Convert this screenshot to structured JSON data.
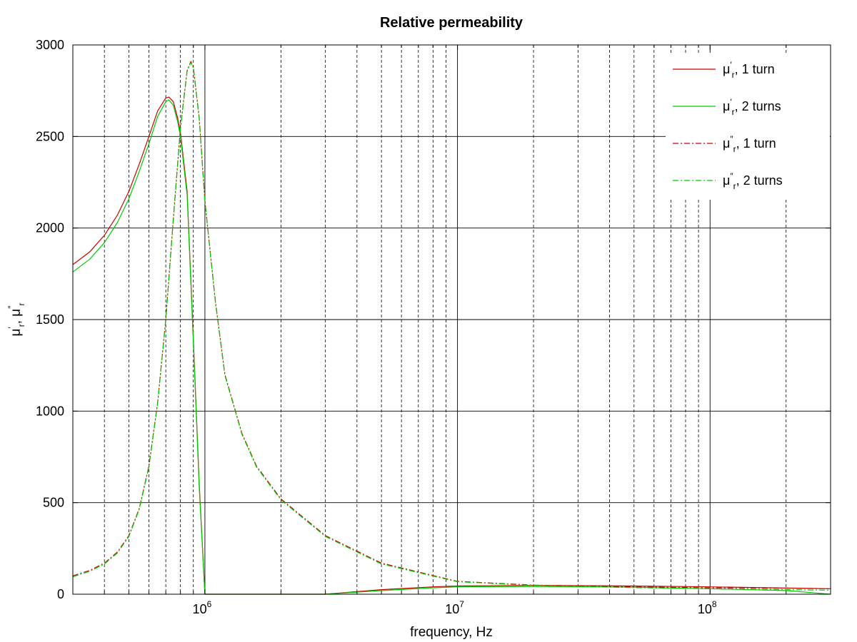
{
  "chart_data": {
    "type": "line",
    "title": "Relative permeability",
    "xlabel": "frequency, Hz",
    "ylabel": "μ′r, μ″r",
    "x_scale": "log",
    "xlim": [
      300000,
      300000000
    ],
    "ylim": [
      0,
      3000
    ],
    "grid": "on",
    "legend_position": "top-right",
    "x_ticks": [
      {
        "value": 1000000,
        "base": "10",
        "exp": "6"
      },
      {
        "value": 10000000,
        "base": "10",
        "exp": "7"
      },
      {
        "value": 100000000,
        "base": "10",
        "exp": "8"
      }
    ],
    "y_ticks": [
      "0",
      "500",
      "1000",
      "1500",
      "2000",
      "2500",
      "3000"
    ],
    "series": [
      {
        "name": "μ′r, 1 turn",
        "legend": {
          "mu": "μ",
          "prime": "′",
          "sub": "r",
          "rest": ", 1 turn"
        },
        "color": "#cc0000",
        "dash": "solid",
        "x": [
          300000,
          350000,
          400000,
          450000,
          500000,
          550000,
          600000,
          650000,
          700000,
          720000,
          750000,
          780000,
          800000,
          850000,
          900000,
          950000,
          1000000,
          3000000,
          5000000,
          8000000,
          10000000,
          20000000,
          50000000,
          100000000,
          300000000
        ],
        "y": [
          1800,
          1870,
          1960,
          2070,
          2200,
          2350,
          2500,
          2640,
          2710,
          2715,
          2690,
          2600,
          2520,
          2200,
          1400,
          600,
          0,
          0,
          25,
          40,
          45,
          48,
          45,
          40,
          30
        ]
      },
      {
        "name": "μ′r, 2 turns",
        "legend": {
          "mu": "μ",
          "prime": "′",
          "sub": "r",
          "rest": ", 2 turns"
        },
        "color": "#00cc00",
        "dash": "solid",
        "x": [
          300000,
          350000,
          400000,
          450000,
          500000,
          550000,
          600000,
          650000,
          700000,
          720000,
          750000,
          780000,
          800000,
          850000,
          900000,
          950000,
          1000000,
          3000000,
          5000000,
          8000000,
          10000000,
          20000000,
          50000000,
          100000000,
          200000000,
          300000000
        ],
        "y": [
          1760,
          1830,
          1920,
          2030,
          2160,
          2310,
          2460,
          2610,
          2690,
          2700,
          2670,
          2580,
          2500,
          2180,
          1380,
          580,
          0,
          0,
          20,
          35,
          40,
          42,
          38,
          30,
          20,
          0
        ]
      },
      {
        "name": "μ″r, 1 turn",
        "legend": {
          "mu": "μ",
          "prime": "″",
          "sub": "r",
          "rest": ", 1 turn"
        },
        "color": "#cc0000",
        "dash": "8,3,2,3",
        "x": [
          300000,
          350000,
          400000,
          450000,
          500000,
          550000,
          600000,
          650000,
          700000,
          750000,
          800000,
          850000,
          880000,
          900000,
          950000,
          1000000,
          1100000,
          1200000,
          1400000,
          1600000,
          2000000,
          3000000,
          5000000,
          10000000,
          20000000,
          50000000,
          100000000,
          200000000,
          300000000
        ],
        "y": [
          100,
          130,
          170,
          230,
          320,
          470,
          700,
          1050,
          1500,
          2050,
          2550,
          2860,
          2910,
          2880,
          2600,
          2150,
          1600,
          1200,
          880,
          700,
          520,
          320,
          170,
          70,
          50,
          40,
          35,
          33,
          30
        ]
      },
      {
        "name": "μ″r, 2 turns",
        "legend": {
          "mu": "μ",
          "prime": "″",
          "sub": "r",
          "rest": ", 2 turns"
        },
        "color": "#00cc00",
        "dash": "8,3,2,3",
        "x": [
          300000,
          350000,
          400000,
          450000,
          500000,
          550000,
          600000,
          650000,
          700000,
          750000,
          800000,
          850000,
          880000,
          900000,
          950000,
          1000000,
          1100000,
          1200000,
          1400000,
          1600000,
          2000000,
          3000000,
          5000000,
          10000000,
          20000000,
          50000000,
          100000000,
          200000000,
          300000000
        ],
        "y": [
          95,
          125,
          165,
          225,
          315,
          465,
          695,
          1045,
          1495,
          2045,
          2545,
          2855,
          2905,
          2875,
          2595,
          2145,
          1595,
          1195,
          875,
          695,
          515,
          315,
          165,
          68,
          48,
          36,
          30,
          25,
          22
        ]
      }
    ]
  }
}
